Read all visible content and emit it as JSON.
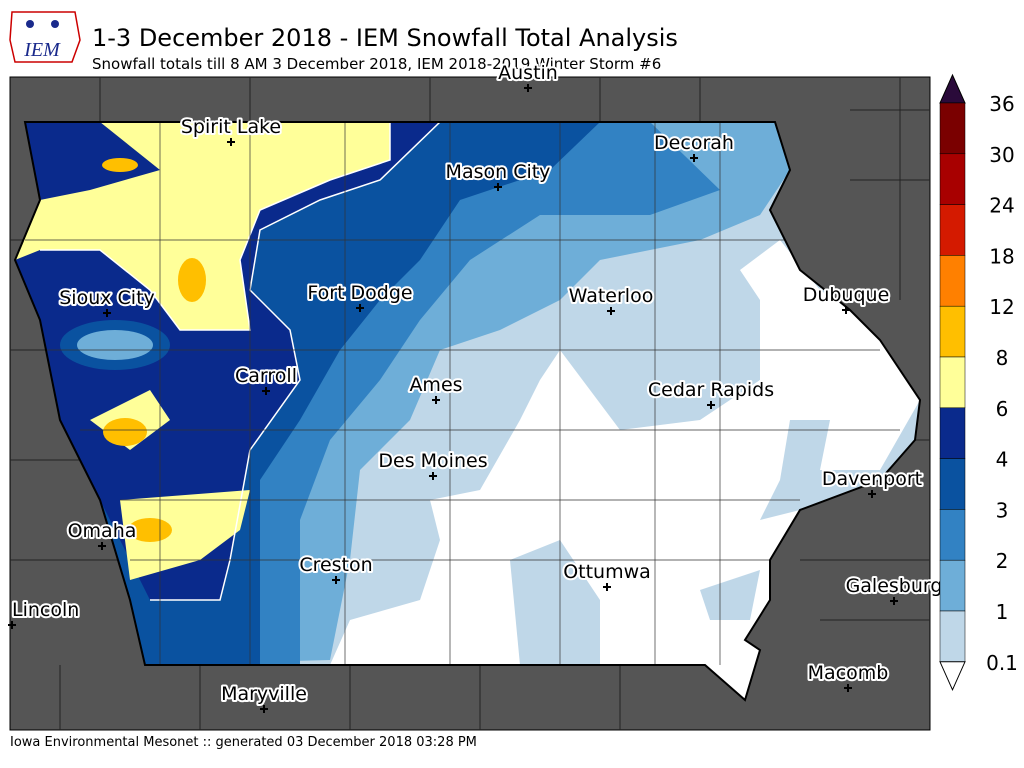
{
  "header": {
    "logo": "IEM",
    "title": "1-3 December 2018 - IEM Snowfall Total Analysis",
    "subtitle": "Snowfall totals till 8 AM 3 December 2018, IEM 2018-2019 Winter Storm #6"
  },
  "cities": [
    "Austin",
    "Spirit Lake",
    "Decorah",
    "Mason City",
    "Sioux City",
    "Fort Dodge",
    "Waterloo",
    "Dubuque",
    "Carroll",
    "Ames",
    "Cedar Rapids",
    "Des Moines",
    "Davenport",
    "Omaha",
    "Creston",
    "Ottumwa",
    "Galesburg",
    "Lincoln",
    "Maryville",
    "Macomb"
  ],
  "colorbar": {
    "labels": [
      "36",
      "30",
      "24",
      "18",
      "12",
      "8",
      "6",
      "4",
      "3",
      "2",
      "1",
      "0.1"
    ],
    "colors": [
      "#7a0000",
      "#a80000",
      "#d41a00",
      "#ff8000",
      "#ffbf00",
      "#ffff99",
      "#0a2a8c",
      "#0a52a0",
      "#3282c3",
      "#6eaed8",
      "#bfd7e8"
    ],
    "over_color": "#2a0a3a",
    "under_color": "#ffffff"
  },
  "footer": "Iowa Environmental Mesonet :: generated 03 December 2018 03:28 PM"
}
